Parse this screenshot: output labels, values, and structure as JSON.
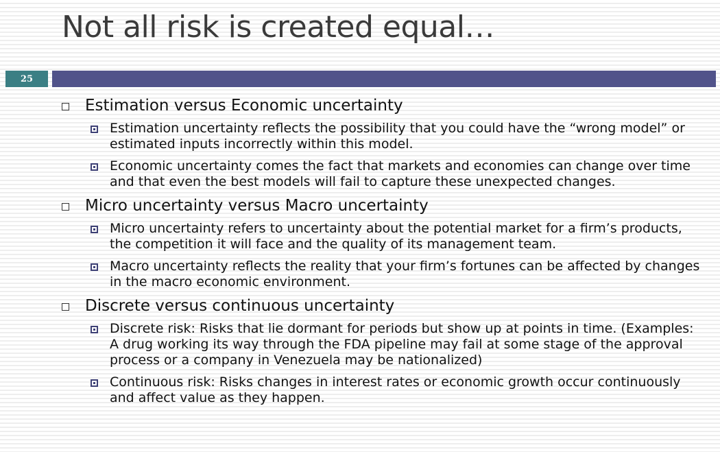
{
  "slide": {
    "title": "Not all risk is created equal…",
    "number": "25"
  },
  "sections": [
    {
      "heading": "Estimation versus Economic uncertainty",
      "items": [
        "Estimation uncertainty reflects the possibility that you could have the “wrong model” or estimated inputs incorrectly within this model.",
        "Economic uncertainty comes the fact that markets and economies can change over time and that even the best models will fail to capture these unexpected changes."
      ]
    },
    {
      "heading": "Micro uncertainty versus Macro uncertainty",
      "items": [
        "Micro uncertainty refers to uncertainty about the potential market for a firm’s products, the competition it will face and the quality of its management team.",
        "Macro uncertainty reflects the reality that your firm’s fortunes can be affected by changes in the macro economic environment."
      ]
    },
    {
      "heading": "Discrete versus continuous uncertainty",
      "items": [
        "Discrete risk: Risks that lie dormant for periods but show up at points in time. (Examples: A drug working its way through the FDA pipeline may fail at some stage of the approval process or a company in Venezuela may be nationalized)",
        "Continuous risk: Risks changes in interest rates or economic growth occur continuously and affect value as they happen."
      ]
    }
  ]
}
